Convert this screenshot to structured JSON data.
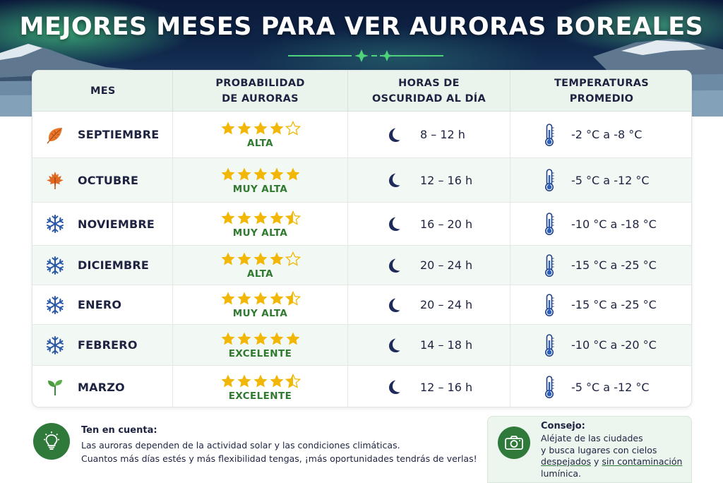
{
  "title": "MEJORES MESES PARA VER AURORAS BOREALES",
  "colors": {
    "accent_green": "#2f7a3a",
    "star": "#f2b705",
    "text_dark": "#1d2340",
    "header_bg": "#eaf4ec"
  },
  "table": {
    "headers": {
      "month": "MES",
      "probability": [
        "PROBABILIDAD",
        "DE AURORAS"
      ],
      "darkness": [
        "HORAS DE",
        "OSCURIDAD AL DÍA"
      ],
      "temperature": [
        "TEMPERATURAS",
        "PROMEDIO"
      ]
    },
    "rows": [
      {
        "month": "SEPTIEMBRE",
        "icon": "autumn-leaf-icon",
        "stars": 4,
        "probability": "ALTA",
        "hours": "8 – 12 h",
        "temperature": "-2 °C a -8 °C"
      },
      {
        "month": "OCTUBRE",
        "icon": "maple-leaf-icon",
        "stars": 5,
        "probability": "MUY ALTA",
        "hours": "12 – 16 h",
        "temperature": "-5 °C a -12 °C"
      },
      {
        "month": "NOVIEMBRE",
        "icon": "snowflake-icon",
        "stars": 4.5,
        "probability": "MUY ALTA",
        "hours": "16 – 20 h",
        "temperature": "-10 °C a -18 °C"
      },
      {
        "month": "DICIEMBRE",
        "icon": "snowflake-icon",
        "stars": 4,
        "probability": "ALTA",
        "hours": "20 – 24 h",
        "temperature": "-15 °C a -25 °C"
      },
      {
        "month": "ENERO",
        "icon": "snowflake-icon",
        "stars": 4.5,
        "probability": "MUY ALTA",
        "hours": "20 – 24 h",
        "temperature": "-15 °C a -25 °C"
      },
      {
        "month": "FEBRERO",
        "icon": "snowflake-icon",
        "stars": 5,
        "probability": "EXCELENTE",
        "hours": "14 – 18 h",
        "temperature": "-10 °C a -20 °C"
      },
      {
        "month": "MARZO",
        "icon": "sprout-icon",
        "stars": 4.5,
        "probability": "EXCELENTE",
        "hours": "12 – 16 h",
        "temperature": "-5 °C a -12 °C"
      }
    ]
  },
  "note": {
    "icon": "lightbulb-icon",
    "title": "Ten en cuenta:",
    "lines": [
      "Las auroras dependen de la actividad solar y las condiciones climáticas.",
      "Cuantos más días estés y más flexibilidad tengas, ¡más oportunidades tendrás de verlas!"
    ]
  },
  "tip": {
    "icon": "camera-icon",
    "title": "Consejo:",
    "line1": "Aléjate de las ciudades",
    "line2": "y busca lugares con cielos",
    "highlight1": "despejados",
    "connector": " y ",
    "highlight2": "sin contaminación",
    "line4": "lumínica."
  }
}
